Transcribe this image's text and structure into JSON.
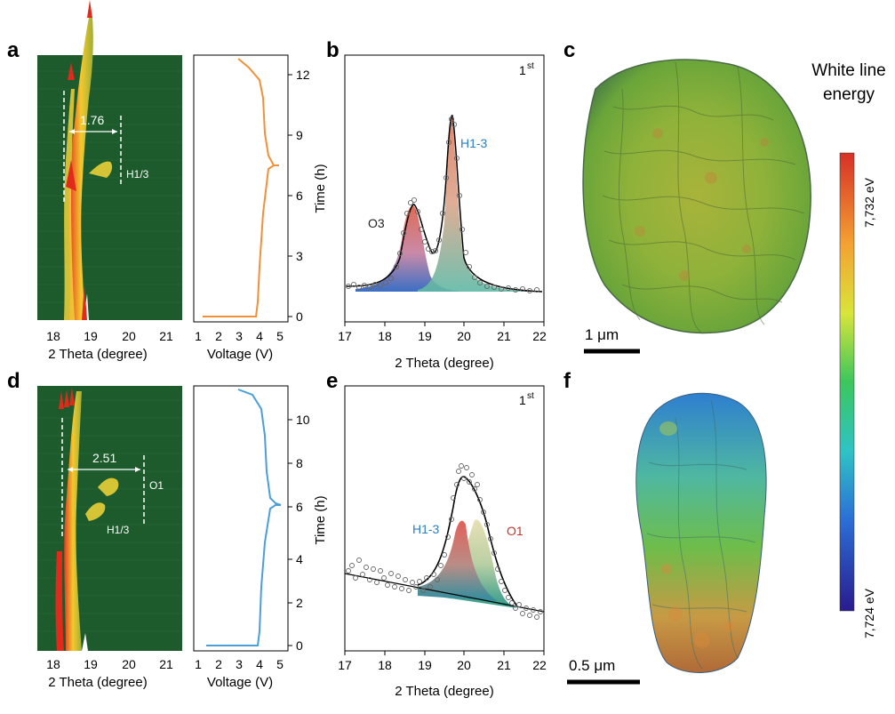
{
  "panels": {
    "a": "a",
    "b": "b",
    "c": "c",
    "d": "d",
    "e": "e",
    "f": "f"
  },
  "panel_a": {
    "annotation_distance": "1.76",
    "annotation_phase": "H1/3",
    "x_axis_label": "2 Theta (degree)",
    "x_ticks": [
      "18",
      "19",
      "20",
      "21"
    ]
  },
  "panel_a_voltage": {
    "x_axis_label": "Voltage (V)",
    "x_ticks": [
      "1",
      "2",
      "3",
      "4",
      "5"
    ],
    "y_ticks": [
      "0",
      "3",
      "6",
      "9",
      "12"
    ],
    "color": "#f0913a"
  },
  "panel_b": {
    "superscript": "1",
    "superscript_st": "st",
    "peak_left_label": "O3",
    "peak_right_label": "H1-3",
    "y_axis_label": "Time (h)",
    "x_axis_label": "2 Theta (degree)",
    "x_ticks": [
      "17",
      "18",
      "19",
      "20",
      "21",
      "22"
    ]
  },
  "panel_c": {
    "scale_bar": "1 μm"
  },
  "colorbar": {
    "title_line1": "White line",
    "title_line2": "energy",
    "max_label": "7,732 eV",
    "min_label": "7,724 eV"
  },
  "panel_d": {
    "annotation_distance": "2.51",
    "annotation_phase_top": "O1",
    "annotation_phase_bottom": "H1/3",
    "x_axis_label": "2 Theta (degree)",
    "x_ticks": [
      "18",
      "19",
      "20",
      "21"
    ]
  },
  "panel_d_voltage": {
    "x_axis_label": "Voltage (V)",
    "x_ticks": [
      "1",
      "2",
      "3",
      "4",
      "5"
    ],
    "y_ticks": [
      "0",
      "2",
      "4",
      "6",
      "8",
      "10"
    ],
    "color": "#4a9fd8"
  },
  "panel_e": {
    "superscript": "1",
    "superscript_st": "st",
    "peak_left_label": "H1-3",
    "peak_right_label": "O1",
    "y_axis_label": "Time (h)",
    "x_axis_label": "2 Theta (degree)",
    "x_ticks": [
      "17",
      "18",
      "19",
      "20",
      "21",
      "22"
    ]
  },
  "panel_f": {
    "scale_bar": "0.5 μm"
  }
}
